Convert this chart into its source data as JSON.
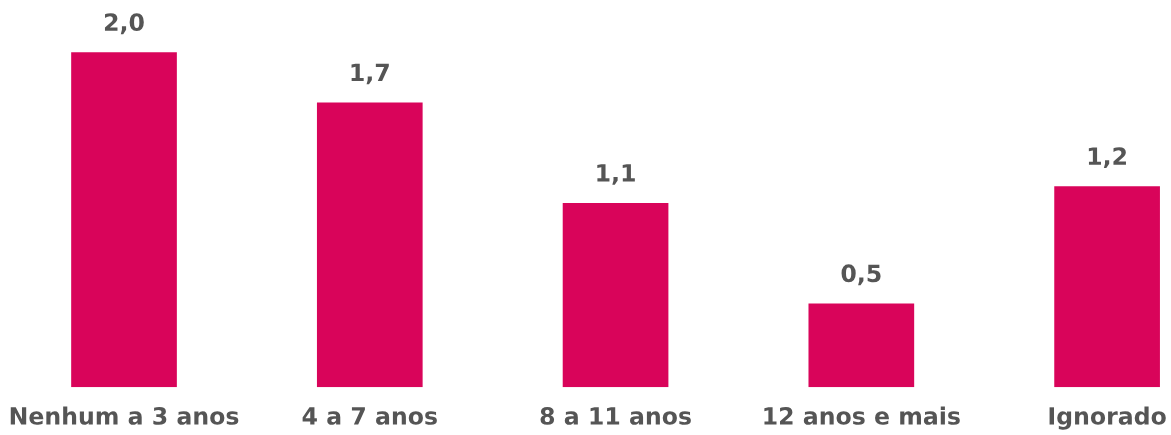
{
  "chart_data": {
    "type": "bar",
    "categories": [
      "Nenhum a 3 anos",
      "4 a 7 anos",
      "8 a 11 anos",
      "12 anos e mais",
      "Ignorado"
    ],
    "values": [
      2.0,
      1.7,
      1.1,
      0.5,
      1.2
    ],
    "value_labels": [
      "2,0",
      "1,7",
      "1,1",
      "0,5",
      "1,2"
    ],
    "color": "#d9045a",
    "grid": false,
    "legend": false
  }
}
